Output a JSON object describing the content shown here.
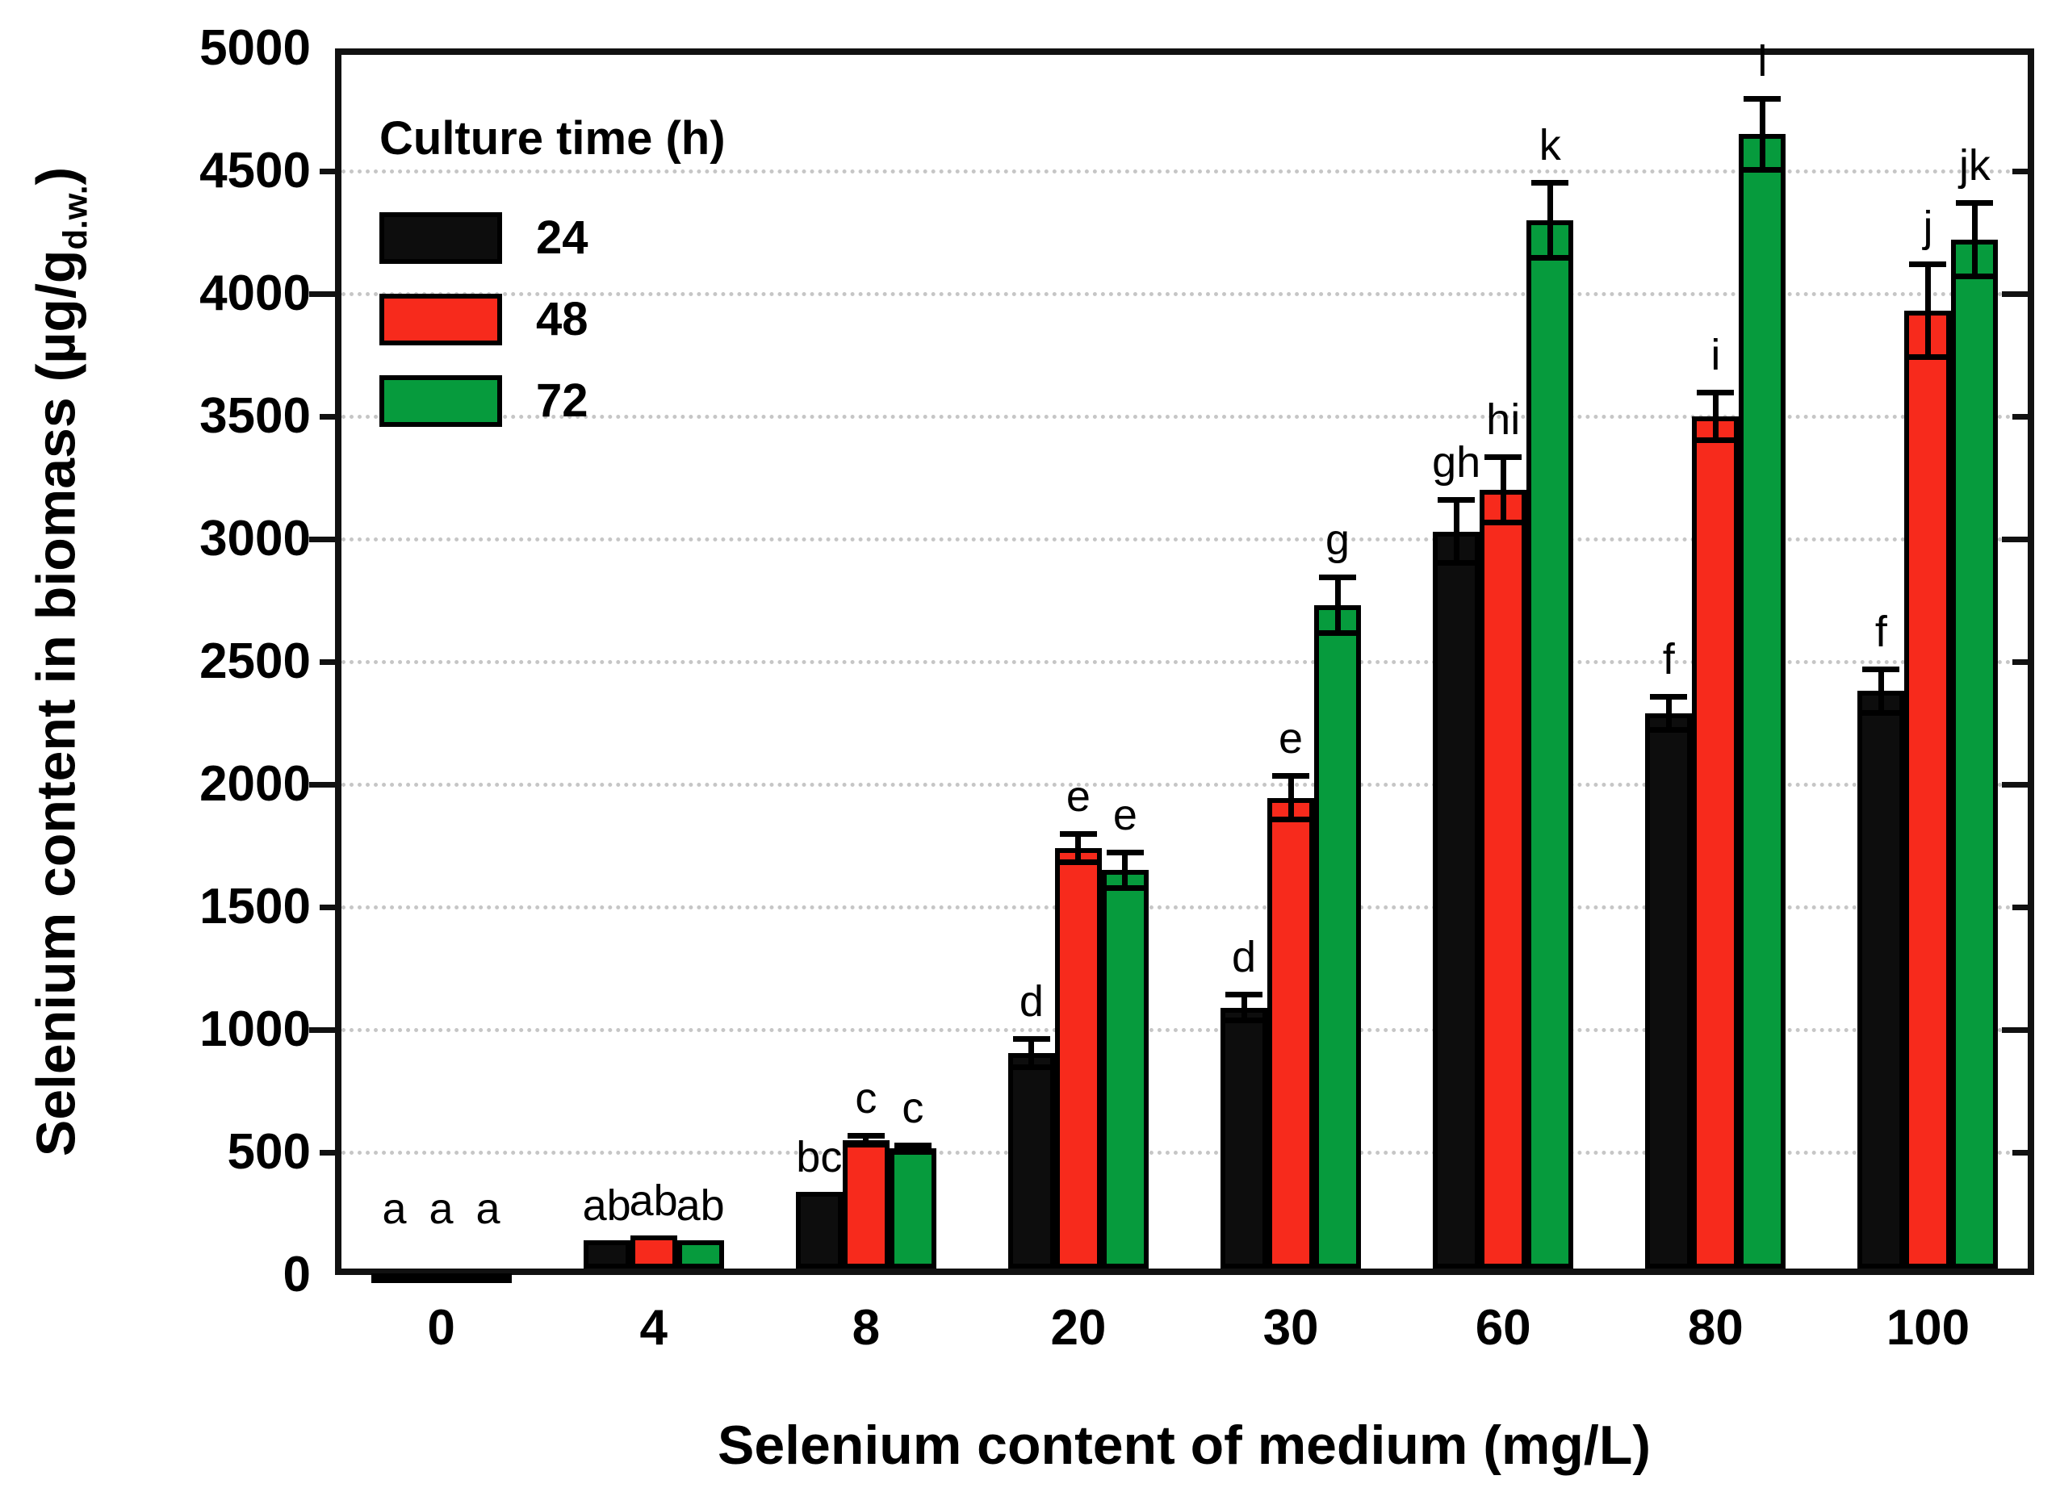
{
  "chart_data": {
    "type": "bar",
    "title": "",
    "xlabel": "Selenium content of medium (mg/L)",
    "ylabel_prefix": "Selenium content in biomass (µg/g",
    "ylabel_sub": "d.w.",
    "ylabel_suffix": ")",
    "ylim": [
      0,
      5000
    ],
    "ytick_step": 500,
    "grid": "horizontal-dotted",
    "legend_title": "Culture time (h)",
    "legend_position": "top-left-inside",
    "categories": [
      "0",
      "4",
      "8",
      "20",
      "30",
      "60",
      "80",
      "100"
    ],
    "series": [
      {
        "name": "24",
        "color": "#0d0d0d",
        "values": [
          5,
          140,
          340,
          905,
          1090,
          3030,
          2290,
          2380
        ],
        "errors": [
          0,
          0,
          0,
          70,
          65,
          140,
          80,
          100
        ],
        "letters": [
          "a",
          "ab",
          "bc",
          "d",
          "d",
          "gh",
          "f",
          "f"
        ]
      },
      {
        "name": "48",
        "color": "#f72a1c",
        "values": [
          5,
          160,
          550,
          1740,
          1945,
          3200,
          3500,
          3930
        ],
        "errors": [
          0,
          0,
          30,
          70,
          100,
          145,
          110,
          200
        ],
        "letters": [
          "a",
          "ab",
          "c",
          "e",
          "e",
          "hi",
          "i",
          "j"
        ]
      },
      {
        "name": "72",
        "color": "#069b3d",
        "values": [
          5,
          140,
          515,
          1650,
          2730,
          4300,
          4650,
          4220
        ],
        "errors": [
          0,
          0,
          25,
          85,
          125,
          165,
          155,
          160
        ],
        "letters": [
          "a",
          "ab",
          "c",
          "e",
          "g",
          "k",
          "l",
          "jk"
        ]
      }
    ]
  }
}
